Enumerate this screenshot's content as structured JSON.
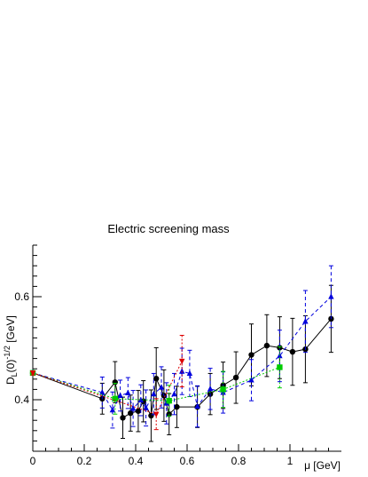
{
  "chart_data": {
    "type": "scatter",
    "title": "Electric screening mass",
    "xlabel": "μ [GeV]",
    "ylabel_main": "D",
    "ylabel_sub": "L",
    "ylabel_tail": "(0)",
    "ylabel_sup": "-1/2",
    "ylabel_unit": " [GeV]",
    "xlim": [
      0,
      1.2
    ],
    "ylim": [
      0.3,
      0.7
    ],
    "x_ticks": [
      "0",
      "0.2",
      "0.4",
      "0.6",
      "0.8",
      "1"
    ],
    "x_tick_values": [
      0,
      0.2,
      0.4,
      0.6,
      0.8,
      1.0
    ],
    "y_ticks": [
      "0.4",
      "0.6"
    ],
    "y_tick_values": [
      0.4,
      0.6
    ],
    "grid": false,
    "legend": "none",
    "series": [
      {
        "marker": "circle",
        "color": "#000000",
        "line": "solid",
        "points": [
          [
            0.0,
            0.452,
            0.004
          ],
          [
            0.27,
            0.402,
            0.03
          ],
          [
            0.32,
            0.434,
            0.04
          ],
          [
            0.35,
            0.365,
            0.04
          ],
          [
            0.38,
            0.374,
            0.035
          ],
          [
            0.41,
            0.378,
            0.04
          ],
          [
            0.43,
            0.397,
            0.04
          ],
          [
            0.46,
            0.369,
            0.05
          ],
          [
            0.48,
            0.441,
            0.06
          ],
          [
            0.51,
            0.408,
            0.05
          ],
          [
            0.53,
            0.372,
            0.04
          ],
          [
            0.56,
            0.386,
            0.04
          ],
          [
            0.64,
            0.386,
            0.04
          ],
          [
            0.69,
            0.411,
            0.04
          ],
          [
            0.74,
            0.428,
            0.045
          ],
          [
            0.79,
            0.443,
            0.05
          ],
          [
            0.85,
            0.487,
            0.06
          ],
          [
            0.91,
            0.505,
            0.06
          ],
          [
            0.96,
            0.501,
            0.06
          ],
          [
            1.01,
            0.493,
            0.065
          ],
          [
            1.06,
            0.498,
            0.065
          ],
          [
            1.16,
            0.557,
            0.065
          ]
        ]
      },
      {
        "marker": "triangle-up",
        "color": "#0000dd",
        "line": "dashed",
        "points": [
          [
            0.0,
            0.452,
            0.004
          ],
          [
            0.27,
            0.414,
            0.03
          ],
          [
            0.31,
            0.38,
            0.035
          ],
          [
            0.34,
            0.408,
            0.03
          ],
          [
            0.37,
            0.413,
            0.03
          ],
          [
            0.39,
            0.383,
            0.035
          ],
          [
            0.42,
            0.399,
            0.03
          ],
          [
            0.44,
            0.384,
            0.035
          ],
          [
            0.47,
            0.411,
            0.04
          ],
          [
            0.5,
            0.424,
            0.04
          ],
          [
            0.52,
            0.393,
            0.04
          ],
          [
            0.55,
            0.411,
            0.04
          ],
          [
            0.58,
            0.455,
            0.045
          ],
          [
            0.61,
            0.451,
            0.045
          ],
          [
            0.64,
            0.387,
            0.04
          ],
          [
            0.69,
            0.421,
            0.04
          ],
          [
            0.74,
            0.414,
            0.04
          ],
          [
            0.85,
            0.438,
            0.04
          ],
          [
            0.96,
            0.485,
            0.05
          ],
          [
            1.06,
            0.552,
            0.06
          ],
          [
            1.16,
            0.6,
            0.06
          ]
        ]
      },
      {
        "marker": "square",
        "color": "#00cc00",
        "line": "dotted",
        "points": [
          [
            0.0,
            0.452,
            0.004
          ],
          [
            0.32,
            0.402,
            0.03
          ],
          [
            0.53,
            0.398,
            0.03
          ],
          [
            0.74,
            0.42,
            0.035
          ],
          [
            0.96,
            0.463,
            0.04
          ]
        ]
      },
      {
        "marker": "triangle-down",
        "color": "#dd0000",
        "line": "dotted",
        "points": [
          [
            0.0,
            0.452,
            0.004
          ],
          [
            0.48,
            0.372,
            0.03
          ],
          [
            0.58,
            0.475,
            0.05
          ]
        ]
      }
    ]
  }
}
